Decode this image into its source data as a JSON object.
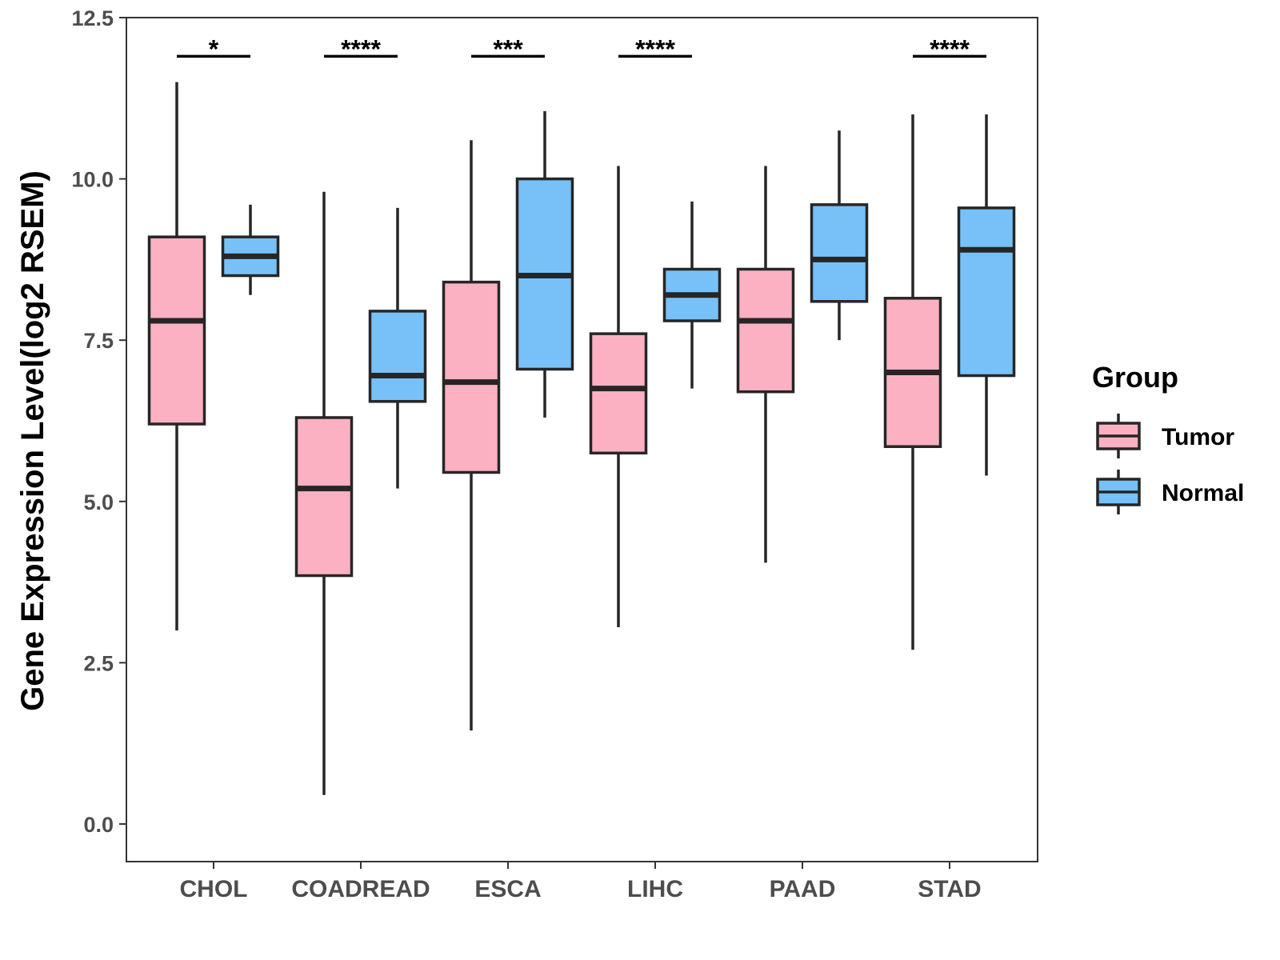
{
  "chart_data": {
    "type": "boxplot",
    "title": "",
    "xlabel": "",
    "ylabel": "Gene Expression Level(log2 RSEM)",
    "ylim": [
      -0.6,
      12.5
    ],
    "yticks": [
      0.0,
      2.5,
      5.0,
      7.5,
      10.0,
      12.5
    ],
    "ytick_labels": [
      "0.0",
      "2.5",
      "5.0",
      "7.5",
      "10.0",
      "12.5"
    ],
    "grid": false,
    "categories": [
      "CHOL",
      "COADREAD",
      "ESCA",
      "LIHC",
      "PAAD",
      "STAD"
    ],
    "legend": {
      "title": "Group",
      "position": "right",
      "entries": [
        "Tumor",
        "Normal"
      ]
    },
    "series": [
      {
        "name": "Tumor",
        "color": "#FBB1C2",
        "boxes": [
          {
            "whisker_low": 3.0,
            "q1": 6.2,
            "median": 7.8,
            "q3": 9.1,
            "whisker_high": 11.5
          },
          {
            "whisker_low": 0.45,
            "q1": 3.85,
            "median": 5.2,
            "q3": 6.3,
            "whisker_high": 9.8
          },
          {
            "whisker_low": 1.45,
            "q1": 5.45,
            "median": 6.85,
            "q3": 8.4,
            "whisker_high": 10.6
          },
          {
            "whisker_low": 3.05,
            "q1": 5.75,
            "median": 6.75,
            "q3": 7.6,
            "whisker_high": 10.2
          },
          {
            "whisker_low": 4.05,
            "q1": 6.7,
            "median": 7.8,
            "q3": 8.6,
            "whisker_high": 10.2
          },
          {
            "whisker_low": 2.7,
            "q1": 5.85,
            "median": 7.0,
            "q3": 8.15,
            "whisker_high": 11.0
          }
        ]
      },
      {
        "name": "Normal",
        "color": "#77C1F8",
        "boxes": [
          {
            "whisker_low": 8.2,
            "q1": 8.5,
            "median": 8.8,
            "q3": 9.1,
            "whisker_high": 9.6
          },
          {
            "whisker_low": 5.2,
            "q1": 6.55,
            "median": 6.95,
            "q3": 7.95,
            "whisker_high": 9.55
          },
          {
            "whisker_low": 6.3,
            "q1": 7.05,
            "median": 8.5,
            "q3": 10.0,
            "whisker_high": 11.05
          },
          {
            "whisker_low": 6.75,
            "q1": 7.8,
            "median": 8.2,
            "q3": 8.6,
            "whisker_high": 9.65
          },
          {
            "whisker_low": 7.5,
            "q1": 8.1,
            "median": 8.75,
            "q3": 9.6,
            "whisker_high": 10.75
          },
          {
            "whisker_low": 5.4,
            "q1": 6.95,
            "median": 8.9,
            "q3": 9.55,
            "whisker_high": 11.0
          }
        ]
      }
    ],
    "significance": [
      "*",
      "****",
      "***",
      "****",
      "",
      "****"
    ],
    "significance_y": 11.9
  }
}
